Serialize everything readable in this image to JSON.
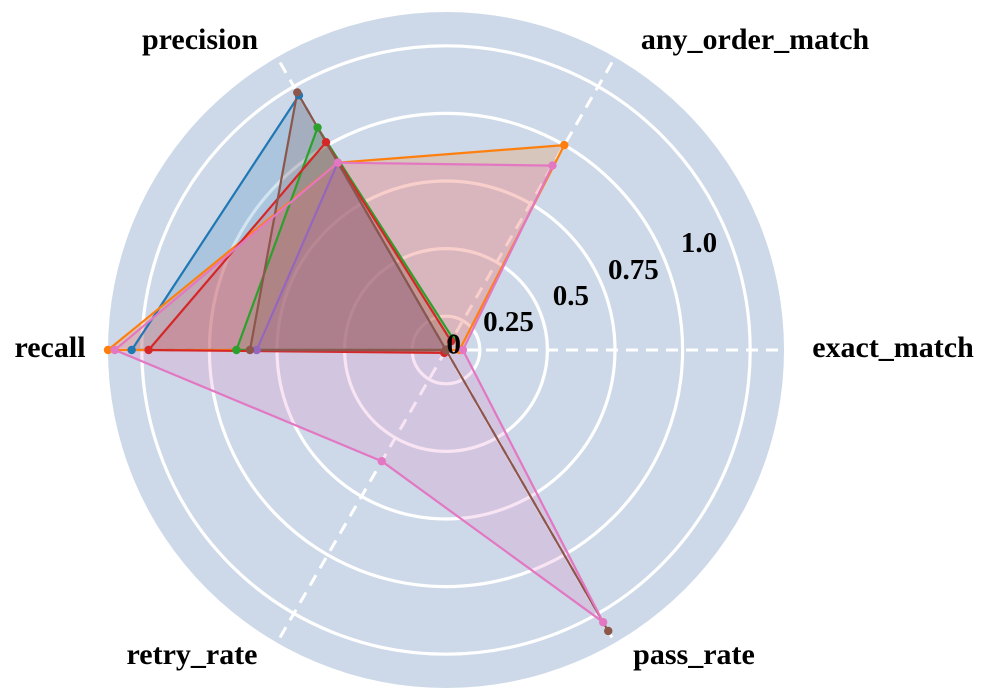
{
  "chart_data": {
    "type": "radar",
    "axes": [
      "exact_match",
      "any_order_match",
      "precision",
      "recall",
      "retry_rate",
      "pass_rate"
    ],
    "rlim": [
      0,
      1.0
    ],
    "rticks": [
      0,
      0.25,
      0.5,
      0.75,
      1.0
    ],
    "rtick_labels": [
      "0",
      "0.25",
      "0.5",
      "0.75",
      "1.0"
    ],
    "grid": true,
    "background_color": "#cdd9e8",
    "series": [
      {
        "color": "#1f77b4",
        "values": [
          0.0,
          0.0,
          0.87,
          0.93,
          0.0,
          0.0
        ]
      },
      {
        "color": "#ff7f0e",
        "values": [
          0.04,
          0.7,
          0.64,
          1.0,
          0.0,
          0.0
        ]
      },
      {
        "color": "#2ca02c",
        "values": [
          0.0,
          0.04,
          0.76,
          0.62,
          0.0,
          0.0
        ]
      },
      {
        "color": "#d62728",
        "values": [
          0.0,
          0.03,
          0.71,
          0.88,
          0.01,
          0.0
        ]
      },
      {
        "color": "#9467bd",
        "values": [
          0.0,
          0.0,
          0.64,
          0.56,
          0.0,
          0.0
        ]
      },
      {
        "color": "#8c564b",
        "values": [
          0.0,
          0.0,
          0.88,
          0.58,
          0.0,
          0.96
        ]
      },
      {
        "color": "#e377c2",
        "values": [
          0.05,
          0.63,
          0.64,
          0.98,
          0.38,
          0.93
        ]
      }
    ]
  }
}
